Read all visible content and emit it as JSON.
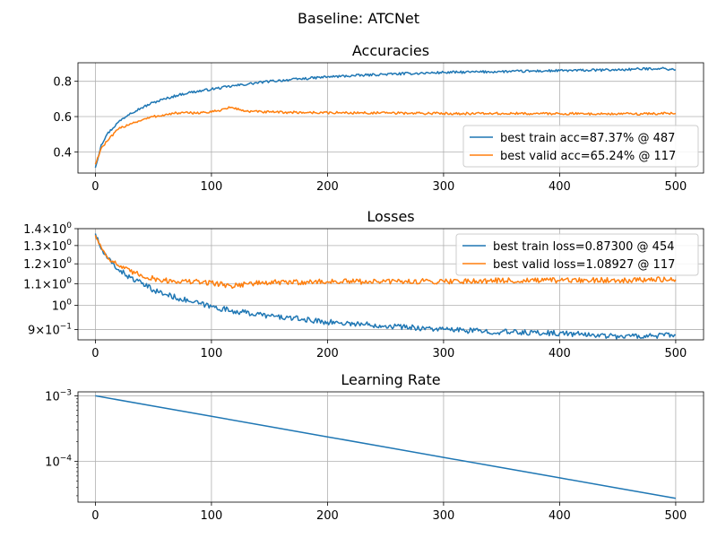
{
  "figure": {
    "suptitle": "Baseline: ATCNet"
  },
  "chart_data": [
    {
      "type": "line",
      "title": "Accuracies",
      "xlabel": "",
      "ylabel": "",
      "xlim": [
        -15,
        524
      ],
      "ylim": [
        0.28,
        0.905
      ],
      "yscale": "linear",
      "grid": true,
      "legend_position": "lower-right",
      "x_ticks": [
        0,
        100,
        200,
        300,
        400,
        500
      ],
      "x_tick_labels": [
        "0",
        "100",
        "200",
        "300",
        "400",
        "500"
      ],
      "y_ticks": [
        0.4,
        0.6,
        0.8
      ],
      "y_tick_labels": [
        "0.4",
        "0.6",
        "0.8"
      ],
      "series": [
        {
          "name": "best train acc=87.37% @ 487",
          "color": "#1f77b4",
          "x": [
            0,
            5,
            10,
            20,
            30,
            40,
            50,
            60,
            70,
            80,
            100,
            120,
            150,
            200,
            250,
            300,
            350,
            400,
            450,
            487,
            500
          ],
          "y": [
            0.31,
            0.44,
            0.5,
            0.57,
            0.62,
            0.65,
            0.68,
            0.7,
            0.72,
            0.735,
            0.755,
            0.775,
            0.8,
            0.825,
            0.84,
            0.85,
            0.855,
            0.86,
            0.865,
            0.8737,
            0.865
          ]
        },
        {
          "name": "best valid acc=65.24% @ 117",
          "color": "#ff7f0e",
          "x": [
            0,
            5,
            10,
            20,
            30,
            40,
            50,
            60,
            70,
            80,
            100,
            117,
            130,
            150,
            200,
            250,
            300,
            350,
            400,
            450,
            500
          ],
          "y": [
            0.33,
            0.42,
            0.46,
            0.53,
            0.56,
            0.58,
            0.6,
            0.61,
            0.62,
            0.62,
            0.625,
            0.6524,
            0.63,
            0.625,
            0.622,
            0.62,
            0.618,
            0.617,
            0.617,
            0.615,
            0.618
          ]
        }
      ]
    },
    {
      "type": "line",
      "title": "Losses",
      "xlabel": "",
      "ylabel": "",
      "xlim": [
        -15,
        524
      ],
      "ylim": [
        0.86,
        1.4
      ],
      "yscale": "log",
      "grid": true,
      "legend_position": "upper-right",
      "x_ticks": [
        0,
        100,
        200,
        300,
        400,
        500
      ],
      "x_tick_labels": [
        "0",
        "100",
        "200",
        "300",
        "400",
        "500"
      ],
      "y_ticks": [
        0.9,
        1.0,
        1.1,
        1.2,
        1.3,
        1.4
      ],
      "y_tick_mantissa": [
        "9",
        "",
        "1.1",
        "1.2",
        "1.3",
        "1.4"
      ],
      "y_tick_base": [
        "10",
        "10",
        "10",
        "10",
        "10",
        "10"
      ],
      "y_tick_exponent": [
        "−1",
        "0",
        "0",
        "0",
        "0",
        "0"
      ],
      "series": [
        {
          "name": "best train loss=0.87300 @ 454",
          "color": "#1f77b4",
          "x": [
            0,
            5,
            10,
            20,
            30,
            40,
            50,
            60,
            80,
            100,
            120,
            150,
            200,
            250,
            300,
            350,
            400,
            454,
            500
          ],
          "y": [
            1.37,
            1.28,
            1.23,
            1.17,
            1.13,
            1.1,
            1.07,
            1.05,
            1.02,
            0.995,
            0.975,
            0.955,
            0.93,
            0.915,
            0.9,
            0.89,
            0.885,
            0.873,
            0.878
          ]
        },
        {
          "name": "best valid loss=1.08927 @ 117",
          "color": "#ff7f0e",
          "x": [
            0,
            5,
            10,
            20,
            30,
            40,
            50,
            60,
            80,
            100,
            117,
            130,
            150,
            200,
            250,
            300,
            350,
            400,
            450,
            500
          ],
          "y": [
            1.36,
            1.29,
            1.24,
            1.19,
            1.16,
            1.14,
            1.125,
            1.115,
            1.11,
            1.105,
            1.0893,
            1.1,
            1.105,
            1.11,
            1.11,
            1.112,
            1.115,
            1.115,
            1.118,
            1.12
          ]
        }
      ]
    },
    {
      "type": "line",
      "title": "Learning Rate",
      "xlabel": "",
      "ylabel": "",
      "xlim": [
        -15,
        524
      ],
      "ylim": [
        2.4e-05,
        0.00115
      ],
      "yscale": "log",
      "grid": true,
      "x_ticks": [
        0,
        100,
        200,
        300,
        400,
        500
      ],
      "x_tick_labels": [
        "0",
        "100",
        "200",
        "300",
        "400",
        "500"
      ],
      "y_ticks": [
        0.001,
        0.0001
      ],
      "y_tick_base": [
        "10",
        "10"
      ],
      "y_tick_exponent": [
        "−3",
        "−4"
      ],
      "series": [
        {
          "color": "#1f77b4",
          "x": [
            0,
            500
          ],
          "y": [
            0.001,
            2.74e-05
          ]
        }
      ]
    }
  ]
}
